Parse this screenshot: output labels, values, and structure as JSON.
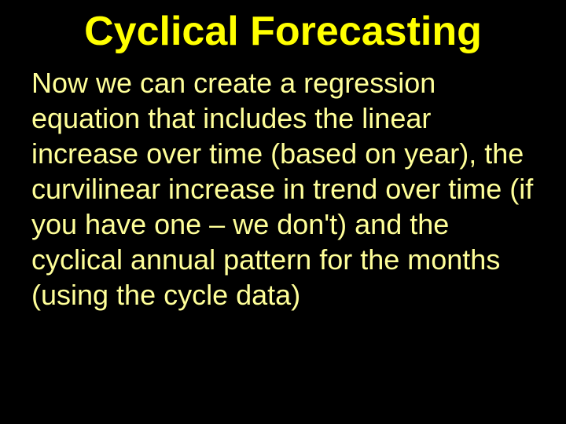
{
  "slide": {
    "title": "Cyclical Forecasting",
    "body": "Now we can create a regression equation that includes the linear increase over time (based on year), the curvilinear increase in trend over time (if you have one – we don't) and the cyclical annual pattern for the months (using the cycle data)",
    "title_color": "#ffff00",
    "body_color": "#ffff99",
    "background_color": "#000000",
    "title_fontsize": 52,
    "body_fontsize": 36,
    "font_family": "Comic Sans MS"
  }
}
